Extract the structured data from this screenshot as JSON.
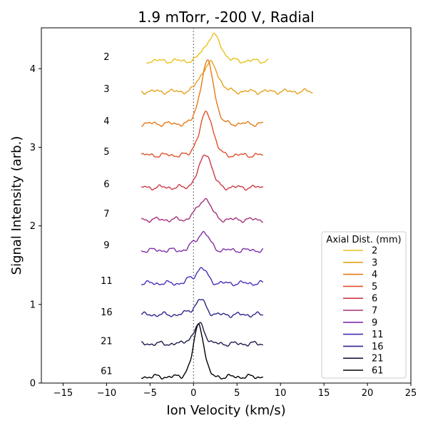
{
  "chart_data": {
    "type": "line",
    "title": "1.9 mTorr, -200 V, Radial",
    "xlabel": "Ion Velocity (km/s)",
    "ylabel": "Signal Intensity (arb.)",
    "xlim": [
      -17.5,
      25
    ],
    "ylim": [
      0,
      4.52
    ],
    "xticks": [
      -15,
      -10,
      -5,
      0,
      5,
      10,
      15,
      20,
      25
    ],
    "yticks": [
      0,
      1,
      2,
      3,
      4
    ],
    "reference_line": {
      "x": 0,
      "style": "dotted"
    },
    "grid": false,
    "legend": {
      "title": "Axial Dist. (mm)",
      "position": "lower-right"
    },
    "series": [
      {
        "name": "2",
        "label": "2",
        "color": "#e6c21c",
        "baseline": 4.1,
        "peak_x": 2.3,
        "peak_h": 0.32,
        "width": 0.85,
        "x_start": -5.4,
        "x_end": 8.6,
        "label_y": 4.15
      },
      {
        "name": "3",
        "label": "3",
        "color": "#e4a11b",
        "baseline": 3.71,
        "peak_x": 1.9,
        "peak_h": 0.36,
        "width": 0.9,
        "x_start": -6.0,
        "x_end": 13.7,
        "label_y": 3.74
      },
      {
        "name": "4",
        "label": "4",
        "color": "#e67a17",
        "baseline": 3.3,
        "peak_x": 1.6,
        "peak_h": 0.78,
        "width": 0.75,
        "x_start": -6.0,
        "x_end": 8.0,
        "label_y": 3.33
      },
      {
        "name": "5",
        "label": "5",
        "color": "#e0502a",
        "baseline": 2.9,
        "peak_x": 1.5,
        "peak_h": 0.54,
        "width": 0.75,
        "x_start": -6.0,
        "x_end": 8.0,
        "label_y": 2.94
      },
      {
        "name": "6",
        "label": "6",
        "color": "#cc3846",
        "baseline": 2.49,
        "peak_x": 1.4,
        "peak_h": 0.43,
        "width": 0.7,
        "x_start": -6.0,
        "x_end": 8.0,
        "label_y": 2.53
      },
      {
        "name": "7",
        "label": "7",
        "color": "#a4307a",
        "baseline": 2.08,
        "peak_x": 1.3,
        "peak_h": 0.27,
        "width": 0.7,
        "x_start": -6.0,
        "x_end": 8.0,
        "label_y": 2.15
      },
      {
        "name": "9",
        "label": "9",
        "color": "#7f2ea6",
        "baseline": 1.69,
        "peak_x": 1.1,
        "peak_h": 0.23,
        "width": 0.7,
        "x_start": -6.0,
        "x_end": 8.0,
        "label_y": 1.75
      },
      {
        "name": "11",
        "label": "11",
        "color": "#4a2bb6",
        "baseline": 1.27,
        "peak_x": 0.9,
        "peak_h": 0.19,
        "width": 0.65,
        "x_start": -6.0,
        "x_end": 8.0,
        "label_y": 1.3
      },
      {
        "name": "16",
        "label": "16",
        "color": "#2a2589",
        "baseline": 0.87,
        "peak_x": 0.8,
        "peak_h": 0.19,
        "width": 0.6,
        "x_start": -6.0,
        "x_end": 8.0,
        "label_y": 0.9
      },
      {
        "name": "21",
        "label": "21",
        "color": "#1a1a48",
        "baseline": 0.5,
        "peak_x": 0.7,
        "peak_h": 0.25,
        "width": 0.6,
        "x_start": -6.0,
        "x_end": 8.0,
        "label_y": 0.53
      },
      {
        "name": "61",
        "label": "61",
        "color": "#000000",
        "baseline": 0.08,
        "peak_x": 0.6,
        "peak_h": 0.66,
        "width": 0.6,
        "x_start": -6.0,
        "x_end": 8.0,
        "label_y": 0.15
      }
    ]
  }
}
